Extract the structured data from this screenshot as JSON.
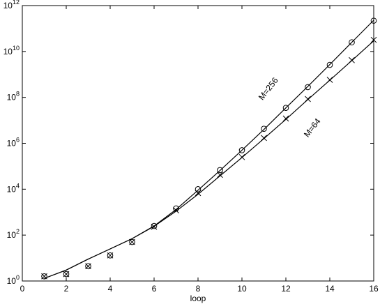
{
  "chart_data": {
    "type": "scatter",
    "xlabel": "loop",
    "x": [
      1,
      2,
      3,
      4,
      5,
      6,
      7,
      8,
      9,
      10,
      11,
      12,
      13,
      14,
      15,
      16
    ],
    "series": [
      {
        "name": "M=256",
        "marker": "circle",
        "color": "#000000",
        "values": [
          1.6,
          2,
          4.4,
          13,
          50,
          250,
          1450,
          10000,
          68000,
          500000,
          4300000,
          35000000,
          280000000,
          2600000000,
          25000000000,
          220000000000
        ],
        "fit": [
          1.3,
          3,
          9,
          25,
          70,
          250,
          1300,
          9000,
          65000,
          500000,
          4000000,
          35000000,
          300000000,
          2700000000,
          25000000000,
          230000000000
        ]
      },
      {
        "name": "M=64",
        "marker": "cross",
        "color": "#000000",
        "values": [
          1.6,
          2,
          4.4,
          13,
          50,
          230,
          1200,
          6800,
          42000,
          250000,
          1700000,
          12000000,
          85000000,
          580000000,
          4200000000,
          32000000000
        ],
        "fit": [
          1.3,
          3,
          9,
          25,
          70,
          240,
          1100,
          6000,
          38000,
          240000,
          1600000,
          11000000,
          80000000,
          560000000,
          4000000000,
          29000000000
        ]
      }
    ],
    "xlim": [
      0,
      16
    ],
    "xticks": [
      0,
      2,
      4,
      6,
      8,
      10,
      12,
      14,
      16
    ],
    "ylim": [
      1,
      1000000000000
    ],
    "log_y": true,
    "yticks": [
      {
        "value": 1,
        "label": {
          "base": "10",
          "exp": "0"
        }
      },
      {
        "value": 100,
        "label": {
          "base": "10",
          "exp": "2"
        }
      },
      {
        "value": 10000,
        "label": {
          "base": "10",
          "exp": "4"
        }
      },
      {
        "value": 1000000,
        "label": {
          "base": "10",
          "exp": "6"
        }
      },
      {
        "value": 100000000,
        "label": {
          "base": "10",
          "exp": "8"
        }
      },
      {
        "value": 10000000000,
        "label": {
          "base": "10",
          "exp": "10"
        }
      },
      {
        "value": 1000000000000,
        "label": {
          "base": "10",
          "exp": "12"
        }
      }
    ],
    "annotations": [
      {
        "text": "M=256",
        "x": 11.3,
        "y": 200000000
      },
      {
        "text": "M=64",
        "x": 13.3,
        "y": 4000000
      }
    ]
  }
}
